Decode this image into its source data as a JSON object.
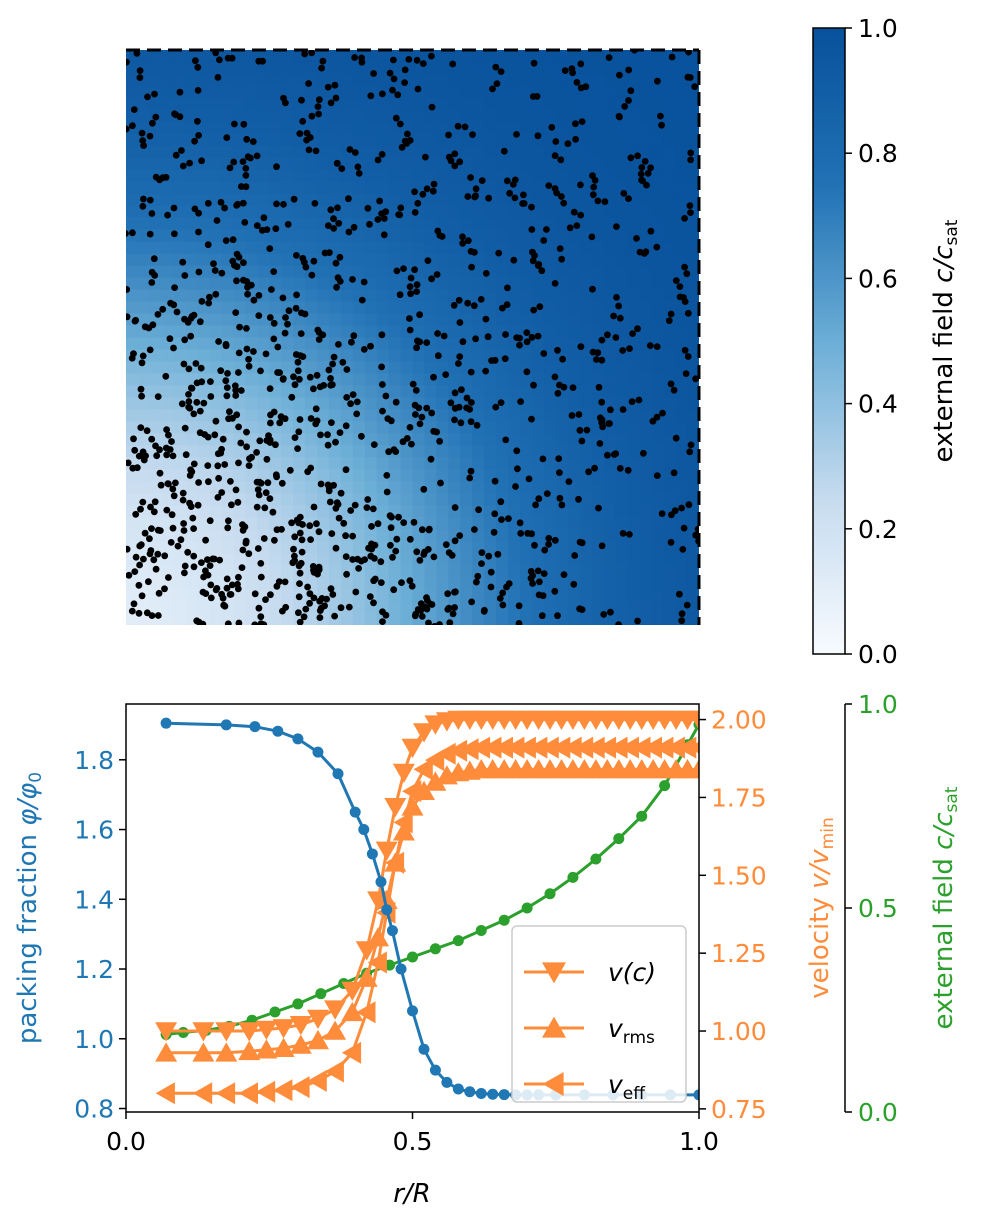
{
  "colors": {
    "phi": "#1f77b4",
    "velocity": "#ff8c3a",
    "field": "#2ca02c",
    "cmap_low": "#f7fbff",
    "cmap_mid": "#6baed6",
    "cmap_high": "#08519c",
    "particle": "#000000"
  },
  "chart_data": [
    {
      "type": "heatmap",
      "title": "",
      "field_description": "radial external field increasing from bottom-left corner",
      "field_scale": {
        "r_half": 0.45,
        "steepness": 0.16,
        "min_value": 0.05,
        "max_value": 1.0
      },
      "particles": {
        "count": 1150,
        "distribution": "denser where field is low",
        "seed": 7
      },
      "colorbar": {
        "label_main": "external field ",
        "label_var": "c/c",
        "label_sub": "sat",
        "range": [
          0.0,
          1.0
        ],
        "ticks": [
          "0.0",
          "0.2",
          "0.4",
          "0.6",
          "0.8",
          "1.0"
        ],
        "tick_values": [
          0.0,
          0.2,
          0.4,
          0.6,
          0.8,
          1.0
        ]
      }
    },
    {
      "type": "line",
      "xlabel": "r/R",
      "xlim": [
        0.0,
        1.0
      ],
      "x_ticks": [
        "0.0",
        "0.5",
        "1.0"
      ],
      "x_tick_values": [
        0.0,
        0.5,
        1.0
      ],
      "left_axis": {
        "label_main": "packing fraction ",
        "label_var": "φ/φ",
        "label_sub": "0",
        "ylim": [
          0.79,
          1.96
        ],
        "ticks": [
          "0.8",
          "1.0",
          "1.2",
          "1.4",
          "1.6",
          "1.8"
        ],
        "tick_values": [
          0.8,
          1.0,
          1.2,
          1.4,
          1.6,
          1.8
        ]
      },
      "right_axis_1": {
        "label_main": "velocity ",
        "label_var": "v/v",
        "label_sub": "min",
        "ylim": [
          0.74,
          2.05
        ],
        "ticks": [
          "0.75",
          "1.00",
          "1.25",
          "1.50",
          "1.75",
          "2.00"
        ],
        "tick_values": [
          0.75,
          1.0,
          1.25,
          1.5,
          1.75,
          2.0
        ]
      },
      "right_axis_2": {
        "label_main": "external field ",
        "label_var": "c/c",
        "label_sub": "sat",
        "ylim": [
          0.0,
          1.0
        ],
        "ticks": [
          "0.0",
          "0.5",
          "1.0"
        ],
        "tick_values": [
          0.0,
          0.5,
          1.0
        ]
      },
      "series": [
        {
          "name": "packing fraction",
          "axis": "left",
          "marker": "circle",
          "x": [
            0.07,
            0.175,
            0.225,
            0.265,
            0.3,
            0.335,
            0.37,
            0.4,
            0.415,
            0.43,
            0.445,
            0.455,
            0.465,
            0.48,
            0.5,
            0.52,
            0.54,
            0.56,
            0.58,
            0.6,
            0.62,
            0.64,
            0.66,
            0.68,
            0.7,
            0.72,
            0.75,
            0.8,
            0.85,
            0.9,
            0.95,
            1.0
          ],
          "y": [
            1.905,
            1.9,
            1.895,
            1.882,
            1.86,
            1.822,
            1.76,
            1.65,
            1.6,
            1.53,
            1.45,
            1.37,
            1.31,
            1.2,
            1.08,
            0.97,
            0.91,
            0.875,
            0.856,
            0.848,
            0.843,
            0.841,
            0.84,
            0.839,
            0.839,
            0.839,
            0.839,
            0.839,
            0.839,
            0.839,
            0.839,
            0.839
          ]
        },
        {
          "name": "field",
          "axis": "right_2",
          "marker": "circle",
          "x": [
            0.07,
            0.1,
            0.14,
            0.18,
            0.22,
            0.26,
            0.3,
            0.34,
            0.38,
            0.42,
            0.46,
            0.5,
            0.54,
            0.58,
            0.62,
            0.66,
            0.7,
            0.74,
            0.78,
            0.82,
            0.86,
            0.9,
            0.94,
            0.98,
            1.0
          ],
          "y": [
            0.19,
            0.195,
            0.2,
            0.21,
            0.225,
            0.245,
            0.265,
            0.29,
            0.315,
            0.34,
            0.36,
            0.38,
            0.4,
            0.42,
            0.445,
            0.47,
            0.5,
            0.535,
            0.575,
            0.62,
            0.67,
            0.725,
            0.8,
            0.9,
            0.95
          ]
        },
        {
          "name": "v(c)",
          "legend_main": "v",
          "legend_sub": "",
          "legend_suffix": "(c)",
          "axis": "right_1",
          "marker": "triangle-down",
          "x": [
            0.07,
            0.135,
            0.175,
            0.215,
            0.245,
            0.275,
            0.305,
            0.335,
            0.365,
            0.395,
            0.42,
            0.44,
            0.455,
            0.47,
            0.485,
            0.5,
            0.52,
            0.54,
            0.56,
            0.58,
            0.6,
            0.62,
            0.64,
            0.66,
            0.68,
            0.7,
            0.72,
            0.74,
            0.76,
            0.78,
            0.8,
            0.82,
            0.84,
            0.86,
            0.88,
            0.9,
            0.92,
            0.94,
            0.96,
            0.98,
            1.0
          ],
          "y": [
            1.0,
            1.0,
            1.0,
            1.0,
            1.005,
            1.01,
            1.02,
            1.04,
            1.07,
            1.13,
            1.26,
            1.42,
            1.58,
            1.72,
            1.83,
            1.91,
            1.96,
            1.985,
            1.995,
            2.0,
            2.0,
            2.0,
            2.0,
            2.0,
            2.0,
            2.0,
            2.0,
            2.0,
            2.0,
            2.0,
            2.0,
            2.0,
            2.0,
            2.0,
            2.0,
            2.0,
            2.0,
            2.0,
            2.0,
            2.0,
            2.0
          ]
        },
        {
          "name": "v_rms",
          "legend_main": "v",
          "legend_sub": "rms",
          "legend_suffix": "",
          "axis": "right_1",
          "marker": "triangle-up",
          "x": [
            0.07,
            0.135,
            0.175,
            0.215,
            0.245,
            0.275,
            0.305,
            0.335,
            0.365,
            0.395,
            0.42,
            0.44,
            0.455,
            0.47,
            0.485,
            0.5,
            0.52,
            0.54,
            0.56,
            0.58,
            0.6,
            0.62,
            0.64,
            0.66,
            0.68,
            0.7,
            0.72,
            0.74,
            0.76,
            0.78,
            0.8,
            0.82,
            0.84,
            0.86,
            0.88,
            0.9,
            0.92,
            0.94,
            0.96,
            0.98,
            1.0
          ],
          "y": [
            0.93,
            0.93,
            0.93,
            0.935,
            0.94,
            0.945,
            0.955,
            0.97,
            1.0,
            1.06,
            1.17,
            1.3,
            1.42,
            1.54,
            1.64,
            1.72,
            1.77,
            1.8,
            1.82,
            1.83,
            1.835,
            1.84,
            1.84,
            1.84,
            1.84,
            1.84,
            1.84,
            1.84,
            1.84,
            1.84,
            1.84,
            1.84,
            1.84,
            1.84,
            1.84,
            1.84,
            1.84,
            1.84,
            1.84,
            1.84,
            1.84
          ]
        },
        {
          "name": "v_eff",
          "legend_main": "v",
          "legend_sub": "eff",
          "legend_suffix": "",
          "axis": "right_1",
          "marker": "triangle-left",
          "x": [
            0.07,
            0.135,
            0.175,
            0.215,
            0.245,
            0.275,
            0.305,
            0.335,
            0.365,
            0.395,
            0.42,
            0.44,
            0.455,
            0.47,
            0.485,
            0.5,
            0.52,
            0.54,
            0.56,
            0.58,
            0.6,
            0.62,
            0.64,
            0.66,
            0.68,
            0.7,
            0.72,
            0.74,
            0.76,
            0.78,
            0.8,
            0.82,
            0.84,
            0.86,
            0.88,
            0.9,
            0.92,
            0.94,
            0.96,
            0.98,
            1.0
          ],
          "y": [
            0.8,
            0.8,
            0.8,
            0.8,
            0.805,
            0.81,
            0.82,
            0.84,
            0.87,
            0.93,
            1.06,
            1.22,
            1.38,
            1.54,
            1.67,
            1.77,
            1.84,
            1.87,
            1.89,
            1.9,
            1.905,
            1.91,
            1.91,
            1.91,
            1.91,
            1.91,
            1.91,
            1.91,
            1.91,
            1.91,
            1.91,
            1.91,
            1.91,
            1.91,
            1.91,
            1.91,
            1.91,
            1.91,
            1.91,
            1.91,
            1.91
          ]
        }
      ],
      "legend_position": "lower-right"
    }
  ]
}
